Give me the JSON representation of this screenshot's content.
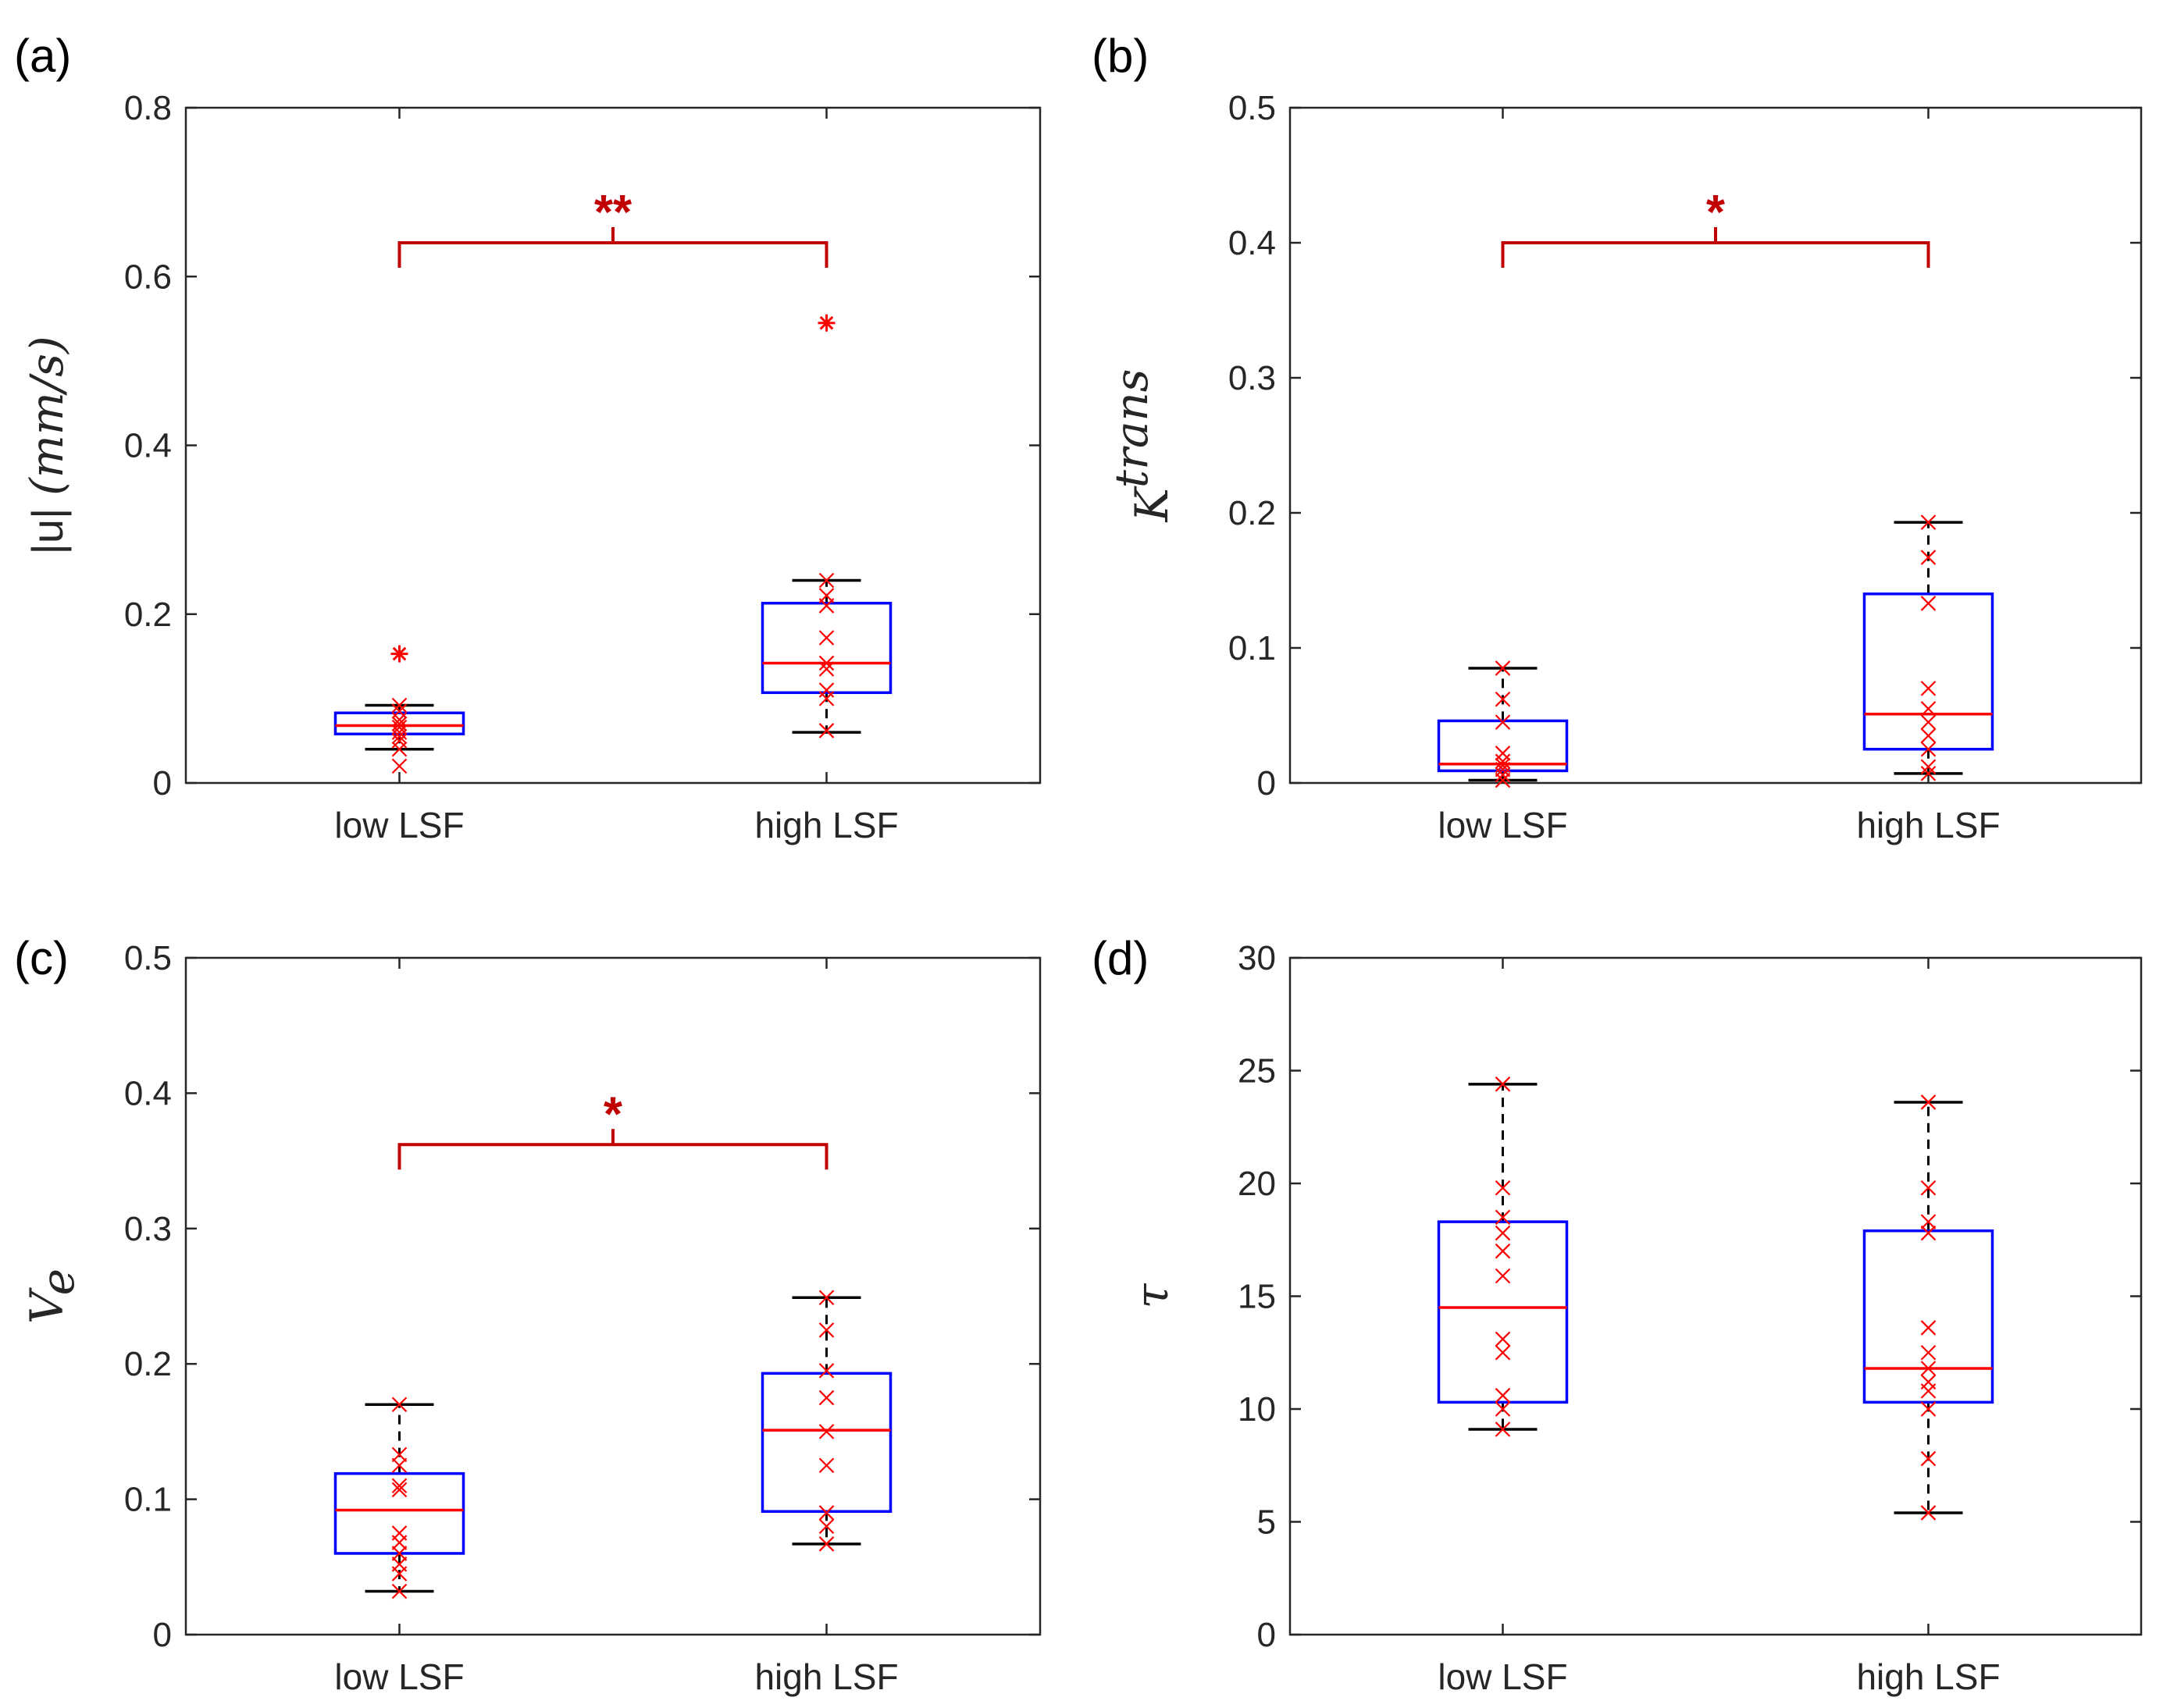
{
  "colors": {
    "box": "#0000ff",
    "median": "#ff0000",
    "whisker": "#000000",
    "points": "#ff0000",
    "bracket": "#c00000",
    "axis": "#262626"
  },
  "chart_data": [
    {
      "type": "box",
      "panel_label": "(a)",
      "ylabel": "|u| (mm/s)",
      "ylabel_parts": {
        "abs": "|u| ",
        "unit": "(mm/s)"
      },
      "ylim": [
        0,
        0.8
      ],
      "yticks": [
        0,
        0.2,
        0.4,
        0.6,
        0.8
      ],
      "ytick_labels": [
        "0",
        "0.2",
        "0.4",
        "0.6",
        "0.8"
      ],
      "categories": [
        "low LSF",
        "high LSF"
      ],
      "boxes": [
        {
          "category": "low LSF",
          "q1": 0.058,
          "median": 0.068,
          "q3": 0.083,
          "whisker_low": 0.04,
          "whisker_high": 0.092,
          "points": [
            0.092,
            0.085,
            0.075,
            0.07,
            0.066,
            0.06,
            0.055,
            0.05,
            0.04,
            0.02
          ],
          "outliers": [
            0.153
          ]
        },
        {
          "category": "high LSF",
          "q1": 0.107,
          "median": 0.142,
          "q3": 0.213,
          "whisker_low": 0.06,
          "whisker_high": 0.24,
          "points": [
            0.24,
            0.222,
            0.21,
            0.172,
            0.142,
            0.135,
            0.11,
            0.1,
            0.062
          ],
          "outliers": [
            0.545
          ]
        }
      ],
      "significance": {
        "label": "**",
        "bracket_y": 0.64
      }
    },
    {
      "type": "box",
      "panel_label": "(b)",
      "ylabel": "K^trans",
      "ylabel_parts": {
        "base": "K",
        "sup": "trans"
      },
      "ylim": [
        0,
        0.5
      ],
      "yticks": [
        0,
        0.1,
        0.2,
        0.3,
        0.4,
        0.5
      ],
      "ytick_labels": [
        "0",
        "0.1",
        "0.2",
        "0.3",
        "0.4",
        "0.5"
      ],
      "categories": [
        "low LSF",
        "high LSF"
      ],
      "boxes": [
        {
          "category": "low LSF",
          "q1": 0.009,
          "median": 0.014,
          "q3": 0.046,
          "whisker_low": 0.002,
          "whisker_high": 0.085,
          "points": [
            0.085,
            0.062,
            0.045,
            0.022,
            0.016,
            0.013,
            0.01,
            0.006,
            0.002
          ],
          "outliers": []
        },
        {
          "category": "high LSF",
          "q1": 0.025,
          "median": 0.051,
          "q3": 0.14,
          "whisker_low": 0.007,
          "whisker_high": 0.193,
          "points": [
            0.193,
            0.167,
            0.133,
            0.07,
            0.055,
            0.045,
            0.035,
            0.025,
            0.012,
            0.007
          ],
          "outliers": []
        }
      ],
      "significance": {
        "label": "*",
        "bracket_y": 0.4
      }
    },
    {
      "type": "box",
      "panel_label": "(c)",
      "ylabel": "V_e",
      "ylabel_parts": {
        "base": "V",
        "sub": "e"
      },
      "ylim": [
        0,
        0.5
      ],
      "yticks": [
        0,
        0.1,
        0.2,
        0.3,
        0.4,
        0.5
      ],
      "ytick_labels": [
        "0",
        "0.1",
        "0.2",
        "0.3",
        "0.4",
        "0.5"
      ],
      "categories": [
        "low LSF",
        "high LSF"
      ],
      "boxes": [
        {
          "category": "low LSF",
          "q1": 0.06,
          "median": 0.092,
          "q3": 0.119,
          "whisker_low": 0.032,
          "whisker_high": 0.17,
          "points": [
            0.17,
            0.133,
            0.125,
            0.11,
            0.107,
            0.075,
            0.068,
            0.06,
            0.052,
            0.045,
            0.032
          ],
          "outliers": []
        },
        {
          "category": "high LSF",
          "q1": 0.091,
          "median": 0.151,
          "q3": 0.193,
          "whisker_low": 0.067,
          "whisker_high": 0.249,
          "points": [
            0.249,
            0.225,
            0.195,
            0.175,
            0.15,
            0.125,
            0.09,
            0.08,
            0.067
          ],
          "outliers": []
        }
      ],
      "significance": {
        "label": "*",
        "bracket_y": 0.362
      }
    },
    {
      "type": "box",
      "panel_label": "(d)",
      "ylabel": "τ",
      "ylabel_parts": {
        "base": "τ"
      },
      "ylim": [
        0,
        30
      ],
      "yticks": [
        0,
        5,
        10,
        15,
        20,
        25,
        30
      ],
      "ytick_labels": [
        "0",
        "5",
        "10",
        "15",
        "20",
        "25",
        "30"
      ],
      "categories": [
        "low LSF",
        "high LSF"
      ],
      "boxes": [
        {
          "category": "low LSF",
          "q1": 10.3,
          "median": 14.5,
          "q3": 18.3,
          "whisker_low": 9.1,
          "whisker_high": 24.4,
          "points": [
            24.4,
            19.8,
            18.5,
            17.8,
            17.0,
            15.9,
            13.1,
            12.5,
            10.6,
            10.0,
            9.1
          ],
          "outliers": []
        },
        {
          "category": "high LSF",
          "q1": 10.3,
          "median": 11.8,
          "q3": 17.9,
          "whisker_low": 5.4,
          "whisker_high": 23.6,
          "points": [
            23.6,
            19.8,
            18.3,
            17.8,
            13.6,
            12.5,
            11.8,
            11.2,
            10.8,
            10.0,
            7.8,
            5.4
          ],
          "outliers": []
        }
      ],
      "significance": null
    }
  ]
}
